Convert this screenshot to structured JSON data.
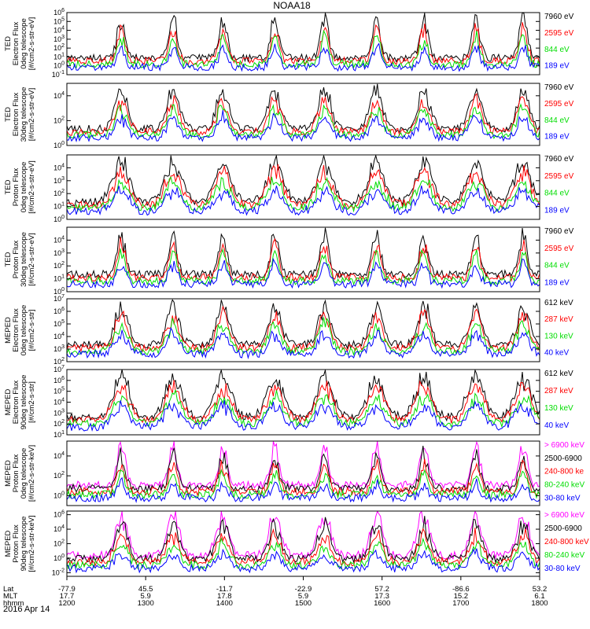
{
  "title": "NOAA18",
  "date_label": "2016 Apr 14",
  "colors": {
    "black": "#000000",
    "red": "#ff0000",
    "green": "#00dd00",
    "blue": "#0000ff",
    "magenta": "#ff00ff"
  },
  "chart_data": [
    {
      "type": "line",
      "ylabel": [
        "TED",
        "Electron Flux",
        "0deg telescope",
        "[#/cm2-s-str-eV]"
      ],
      "yticks": [
        "10^-1",
        "10^0",
        "10^1",
        "10^2",
        "10^3",
        "10^4",
        "10^5",
        "10^6"
      ],
      "ylim": [
        -1,
        6
      ],
      "series": [
        {
          "name": "7960 eV",
          "color": "black"
        },
        {
          "name": "2595 eV",
          "color": "red"
        },
        {
          "name": "844 eV",
          "color": "green"
        },
        {
          "name": "189 eV",
          "color": "blue"
        }
      ]
    },
    {
      "type": "line",
      "ylabel": [
        "TED",
        "Electron Flux",
        "30deg telescope",
        "[#/cm2-s-str-eV]"
      ],
      "yticks": [
        "10^0",
        "10^2",
        "10^4"
      ],
      "ylim": [
        0,
        5
      ],
      "series": [
        {
          "name": "7960 eV",
          "color": "black"
        },
        {
          "name": "2595 eV",
          "color": "red"
        },
        {
          "name": "844 eV",
          "color": "green"
        },
        {
          "name": "189 eV",
          "color": "blue"
        }
      ]
    },
    {
      "type": "line",
      "ylabel": [
        "TED",
        "Proton Flux",
        "0deg telescope",
        "[#/cm2-s-str-eV]"
      ],
      "yticks": [
        "10^0",
        "10^1",
        "10^2",
        "10^3",
        "10^4"
      ],
      "ylim": [
        0,
        5
      ],
      "series": [
        {
          "name": "7960 eV",
          "color": "black"
        },
        {
          "name": "2595 eV",
          "color": "red"
        },
        {
          "name": "844 eV",
          "color": "green"
        },
        {
          "name": "189 eV",
          "color": "blue"
        }
      ]
    },
    {
      "type": "line",
      "ylabel": [
        "TED",
        "Proton Flux",
        "30deg telescope",
        "[#/cm2-s-str-eV]"
      ],
      "yticks": [
        "10^0",
        "10^1",
        "10^2",
        "10^3",
        "10^4"
      ],
      "ylim": [
        0,
        5
      ],
      "series": [
        {
          "name": "7960 eV",
          "color": "black"
        },
        {
          "name": "2595 eV",
          "color": "red"
        },
        {
          "name": "844 eV",
          "color": "green"
        },
        {
          "name": "189 eV",
          "color": "blue"
        }
      ]
    },
    {
      "type": "line",
      "ylabel": [
        "MEPED",
        "Electron Flux",
        "0deg telescope",
        "[#/cm2-s-str]"
      ],
      "yticks": [
        "10^2",
        "10^3",
        "10^4",
        "10^5",
        "10^6",
        "10^7"
      ],
      "ylim": [
        2,
        7
      ],
      "series": [
        {
          "name": "612 keV",
          "color": "black"
        },
        {
          "name": "287 keV",
          "color": "red"
        },
        {
          "name": "130 keV",
          "color": "green"
        },
        {
          "name": "40 keV",
          "color": "blue"
        }
      ]
    },
    {
      "type": "line",
      "ylabel": [
        "MEPED",
        "Electron Flux",
        "90deg telescope",
        "[#/cm2-s-str]"
      ],
      "yticks": [
        "10^1",
        "10^2",
        "10^3",
        "10^4",
        "10^5",
        "10^6",
        "10^7"
      ],
      "ylim": [
        1,
        7
      ],
      "series": [
        {
          "name": "612 keV",
          "color": "black"
        },
        {
          "name": "287 keV",
          "color": "red"
        },
        {
          "name": "130 keV",
          "color": "green"
        },
        {
          "name": "40 keV",
          "color": "blue"
        }
      ]
    },
    {
      "type": "line",
      "ylabel": [
        "MEPED",
        "Proton Flux",
        "0deg telescope",
        "[#/cm2-s-str-keV]"
      ],
      "yticks": [
        "10^0",
        "10^2",
        "10^4"
      ],
      "ylim": [
        -1,
        5.5
      ],
      "series": [
        {
          "name": "> 6900 keV",
          "color": "magenta"
        },
        {
          "name": "2500-6900",
          "color": "black"
        },
        {
          "name": "240-800 ke",
          "color": "red"
        },
        {
          "name": "80-240 keV",
          "color": "green"
        },
        {
          "name": "30-80 keV",
          "color": "blue"
        }
      ]
    },
    {
      "type": "line",
      "ylabel": [
        "MEPED",
        "Proton Flux",
        "90deg telescope",
        "[#/cm2-s-str-keV]"
      ],
      "yticks": [
        "10^-2",
        "10^0",
        "10^2",
        "10^4",
        "10^6"
      ],
      "ylim": [
        -2.5,
        6.5
      ],
      "series": [
        {
          "name": "> 6900 keV",
          "color": "magenta"
        },
        {
          "name": "2500-6900",
          "color": "black"
        },
        {
          "name": "240-800 keV",
          "color": "red"
        },
        {
          "name": "80-240 keV",
          "color": "green"
        },
        {
          "name": "30-80 keV",
          "color": "blue"
        }
      ]
    }
  ],
  "x_axis": {
    "row_labels": [
      "Lat",
      "MLT",
      "hhmm"
    ],
    "columns": [
      {
        "lat": "-77.9",
        "mlt": "17.7",
        "hhmm": "1200"
      },
      {
        "lat": "45.5",
        "mlt": "5.9",
        "hhmm": "1300"
      },
      {
        "lat": "-11.7",
        "mlt": "17.8",
        "hhmm": "1400"
      },
      {
        "lat": "-22.9",
        "mlt": "5.9",
        "hhmm": "1500"
      },
      {
        "lat": "57.2",
        "mlt": "17.3",
        "hhmm": "1600"
      },
      {
        "lat": "-86.6",
        "mlt": "15.2",
        "hhmm": "1700"
      },
      {
        "lat": "53.2",
        "mlt": "6.1",
        "hhmm": "1800"
      }
    ]
  }
}
